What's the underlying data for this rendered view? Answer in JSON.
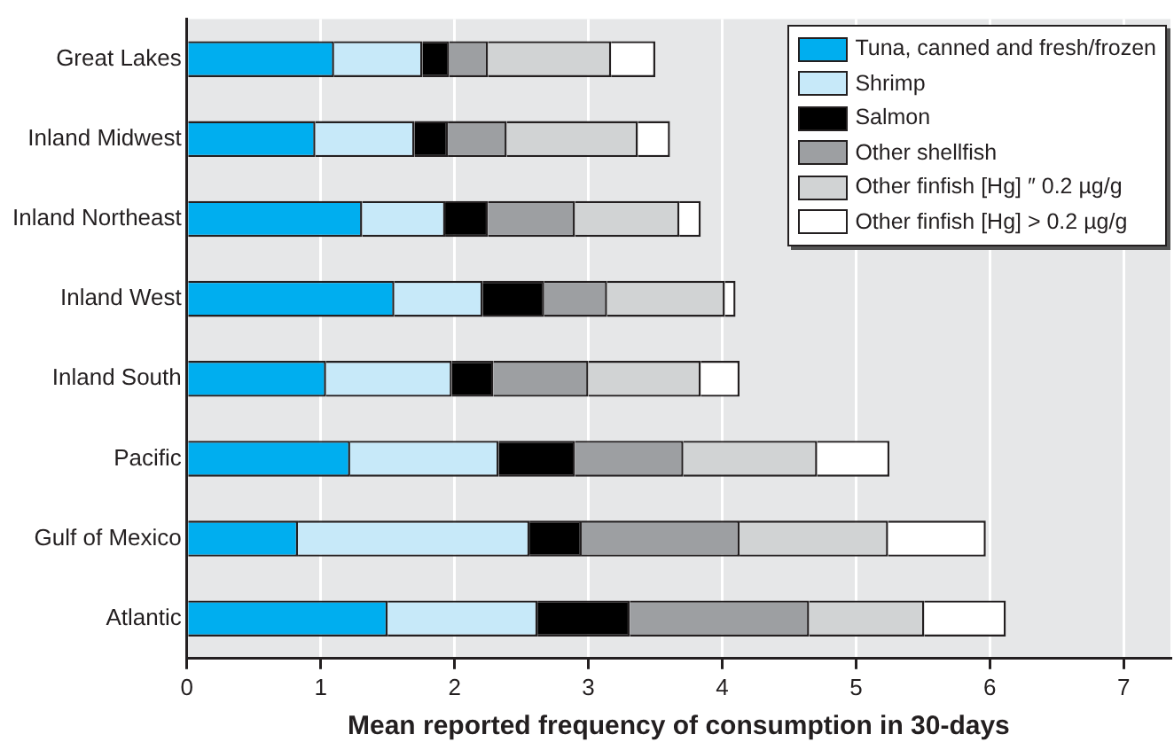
{
  "chart_data": {
    "type": "bar",
    "orientation": "horizontal",
    "stacked": true,
    "xlabel": "Mean reported frequency of consumption in 30-days",
    "categories": [
      "Great Lakes",
      "Inland Midwest",
      "Inland Northeast",
      "Inland West",
      "Inland South",
      "Pacific",
      "Gulf of Mexico",
      "Atlantic"
    ],
    "series": [
      {
        "name": "Tuna, canned and fresh/frozen",
        "color": "#00aeef",
        "values": [
          1.1,
          0.96,
          1.31,
          1.55,
          1.04,
          1.22,
          0.83,
          1.5
        ]
      },
      {
        "name": "Shrimp",
        "color": "#c7e9f9",
        "values": [
          0.66,
          0.74,
          0.62,
          0.66,
          0.94,
          1.11,
          1.73,
          1.12
        ]
      },
      {
        "name": "Salmon",
        "color": "#000000",
        "values": [
          0.2,
          0.25,
          0.32,
          0.46,
          0.31,
          0.57,
          0.39,
          0.69
        ]
      },
      {
        "name": "Other shellfish",
        "color": "#9d9fa2",
        "values": [
          0.29,
          0.44,
          0.65,
          0.47,
          0.71,
          0.81,
          1.18,
          1.34
        ]
      },
      {
        "name": "Other finfish [Hg] ″ 0.2 µg/g",
        "color": "#d1d3d4",
        "values": [
          0.92,
          0.98,
          0.78,
          0.88,
          0.84,
          1.0,
          1.11,
          0.86
        ]
      },
      {
        "name": "Other finfish [Hg] > 0.2 µg/g",
        "color": "#ffffff",
        "values": [
          0.33,
          0.24,
          0.16,
          0.08,
          0.29,
          0.54,
          0.73,
          0.61
        ]
      }
    ],
    "xlim": [
      0,
      7.35
    ],
    "xticks": [
      0,
      1,
      2,
      3,
      4,
      5,
      6,
      7
    ],
    "grid": "x",
    "legend": "top right"
  }
}
